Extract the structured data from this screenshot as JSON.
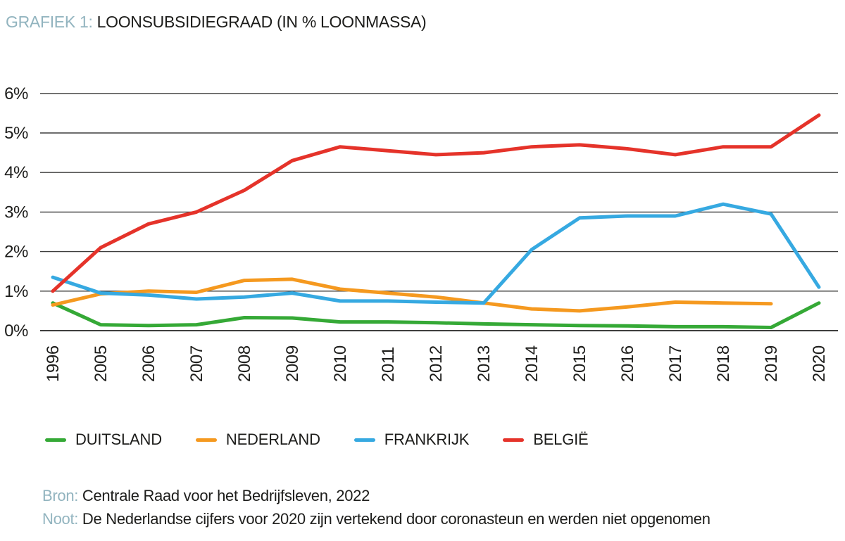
{
  "title": {
    "prefix": "GRAFIEK 1:",
    "text": "LOONSUBSIDIEGRAAD (IN % LOONMASSA)"
  },
  "colors": {
    "accent": "#92B4BF",
    "text": "#1D1D1B",
    "grid": "#3E3E3D",
    "background": "#FFFFFF",
    "duitsland": "#35A936",
    "nederland": "#F5991F",
    "frankrijk": "#36A9E1",
    "belgie": "#E5332A"
  },
  "chart_data": {
    "type": "line",
    "title": "GRAFIEK 1: LOONSUBSIDIEGRAAD (IN % LOONMASSA)",
    "xlabel": "",
    "ylabel": "% loonmassa",
    "ylim": [
      0,
      6
    ],
    "ytick_step": 1,
    "yticks": [
      "0%",
      "1%",
      "2%",
      "3%",
      "4%",
      "5%",
      "6%"
    ],
    "grid": true,
    "legend_position": "bottom",
    "categories": [
      "1996",
      "2005",
      "2006",
      "2007",
      "2008",
      "2009",
      "2010",
      "2011",
      "2012",
      "2013",
      "2014",
      "2015",
      "2016",
      "2017",
      "2018",
      "2019",
      "2020"
    ],
    "series": [
      {
        "name": "DUITSLAND",
        "color_key": "duitsland",
        "values": [
          0.7,
          0.15,
          0.13,
          0.15,
          0.33,
          0.32,
          0.22,
          0.22,
          0.2,
          0.17,
          0.15,
          0.13,
          0.12,
          0.1,
          0.1,
          0.08,
          0.7
        ]
      },
      {
        "name": "NEDERLAND",
        "color_key": "nederland",
        "values": [
          0.65,
          0.93,
          1.0,
          0.97,
          1.27,
          1.3,
          1.05,
          0.95,
          0.85,
          0.7,
          0.55,
          0.5,
          0.6,
          0.72,
          0.7,
          0.68,
          null
        ]
      },
      {
        "name": "FRANKRIJK",
        "color_key": "frankrijk",
        "values": [
          1.35,
          0.95,
          0.9,
          0.8,
          0.85,
          0.95,
          0.75,
          0.75,
          0.72,
          0.7,
          2.05,
          2.85,
          2.9,
          2.9,
          3.2,
          2.95,
          1.1
        ]
      },
      {
        "name": "BELGIË",
        "color_key": "belgie",
        "values": [
          1.0,
          2.1,
          2.7,
          3.0,
          3.55,
          4.3,
          4.65,
          4.55,
          4.45,
          4.5,
          4.65,
          4.7,
          4.6,
          4.45,
          4.65,
          4.65,
          5.45
        ]
      }
    ]
  },
  "footer": {
    "source_label": "Bron:",
    "source_text": "Centrale Raad voor het Bedrijfsleven, 2022",
    "note_label": "Noot:",
    "note_text": "De Nederlandse cijfers voor 2020 zijn vertekend door coronasteun en werden niet opgenomen"
  }
}
